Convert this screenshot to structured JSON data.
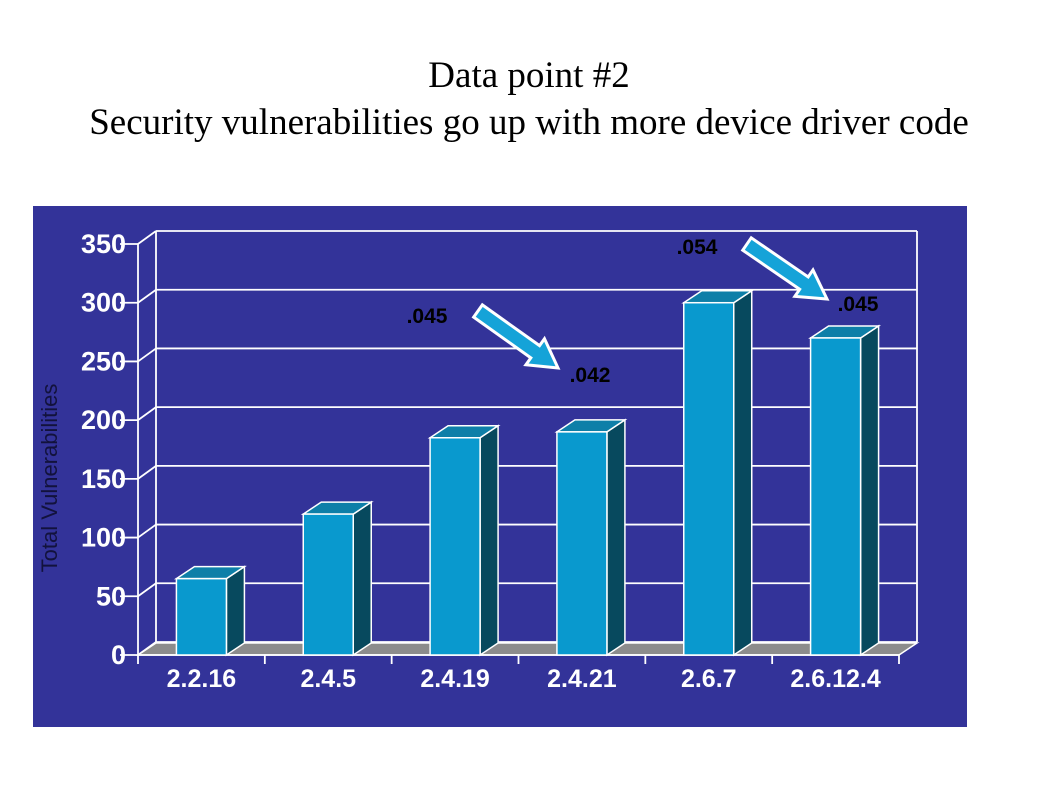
{
  "title": {
    "line1": "Data point #2",
    "line2": "Security vulnerabilities go up with more device driver code"
  },
  "chart_data": {
    "type": "bar",
    "style": "3d-column",
    "title": "",
    "xlabel": "",
    "ylabel": "Total Vulnerabilities",
    "categories": [
      "2.2.16",
      "2.4.5",
      "2.4.19",
      "2.4.21",
      "2.6.7",
      "2.6.12.4"
    ],
    "values": [
      65,
      120,
      185,
      190,
      300,
      270
    ],
    "ylim": [
      0,
      350
    ],
    "ytick_step": 50,
    "yticks": [
      "0",
      "50",
      "100",
      "150",
      "200",
      "250",
      "300",
      "350"
    ],
    "grid": true,
    "legend": false,
    "annotations": [
      {
        "text": ".045",
        "attached_to": "2.4.19"
      },
      {
        "text": ".042",
        "attached_to": "2.4.21"
      },
      {
        "text": ".054",
        "attached_to": "2.6.7"
      },
      {
        "text": ".045",
        "attached_to": "2.6.12.4"
      }
    ],
    "arrows": [
      {
        "from_label": ".045",
        "to_label": ".042"
      },
      {
        "from_label": ".054",
        "to_label": ".045"
      }
    ],
    "colors": {
      "wall": "#333399",
      "gridline": "#ffffff",
      "floor": "#8c8c8c",
      "bar_front": "#0999ce",
      "bar_top": "#0e7fa8",
      "bar_side": "#07495e",
      "axis_text": "#ffffff",
      "yaxis_title_text": "#12123c",
      "annotation_text": "#000000",
      "arrow_fill": "#15a3d8",
      "arrow_outline": "#ffffff"
    }
  }
}
